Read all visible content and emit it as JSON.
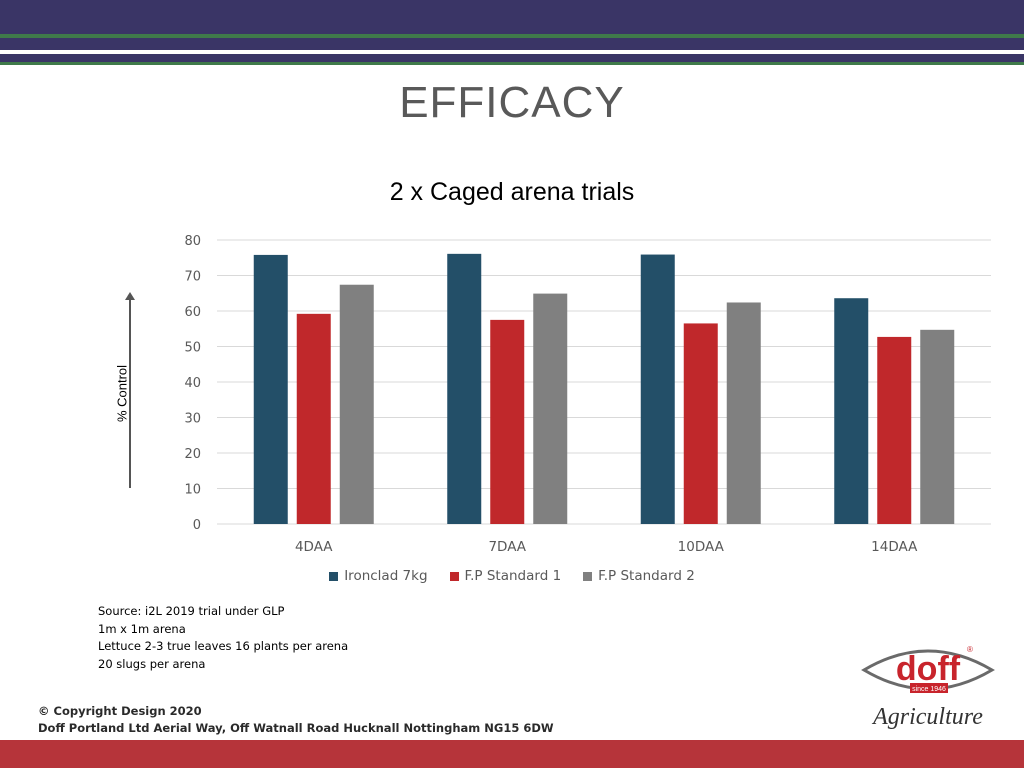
{
  "slide": {
    "title": "EFFICACY",
    "notes": [
      "Source: i2L 2019 trial under GLP",
      "1m x 1m arena",
      "Lettuce 2-3 true leaves 16 plants per arena",
      "20 slugs per arena"
    ],
    "copyright": [
      "© Copyright Design 2020",
      "Doff Portland Ltd Aerial Way, Off Watnall Road Hucknall Nottingham NG15 6DW"
    ],
    "logo": {
      "wordmark": "doff",
      "since": "since 1946",
      "tagline": "Agriculture",
      "registered": "®"
    }
  },
  "colors": {
    "top_band": "#3a3566",
    "green_stripe": "#3f7a4a",
    "bottom_band": "#b6343a",
    "logo_red": "#c8242c"
  },
  "chart_data": {
    "type": "bar",
    "title": "2 x Caged arena trials",
    "xlabel": "",
    "ylabel": "% Control",
    "categories": [
      "4DAA",
      "7DAA",
      "10DAA",
      "14DAA"
    ],
    "series": [
      {
        "name": "Ironclad 7kg",
        "color": "#234f68",
        "values": [
          75.8,
          76.1,
          75.9,
          63.6
        ]
      },
      {
        "name": "F.P Standard 1",
        "color": "#c0282b",
        "values": [
          59.2,
          57.5,
          56.5,
          52.7
        ]
      },
      {
        "name": "F.P Standard 2",
        "color": "#808080",
        "values": [
          67.4,
          64.9,
          62.4,
          54.7
        ]
      }
    ],
    "ylim": [
      0,
      80
    ],
    "yticks": [
      0,
      10,
      20,
      30,
      40,
      50,
      60,
      70,
      80
    ],
    "grid": true,
    "legend": "bottom"
  }
}
